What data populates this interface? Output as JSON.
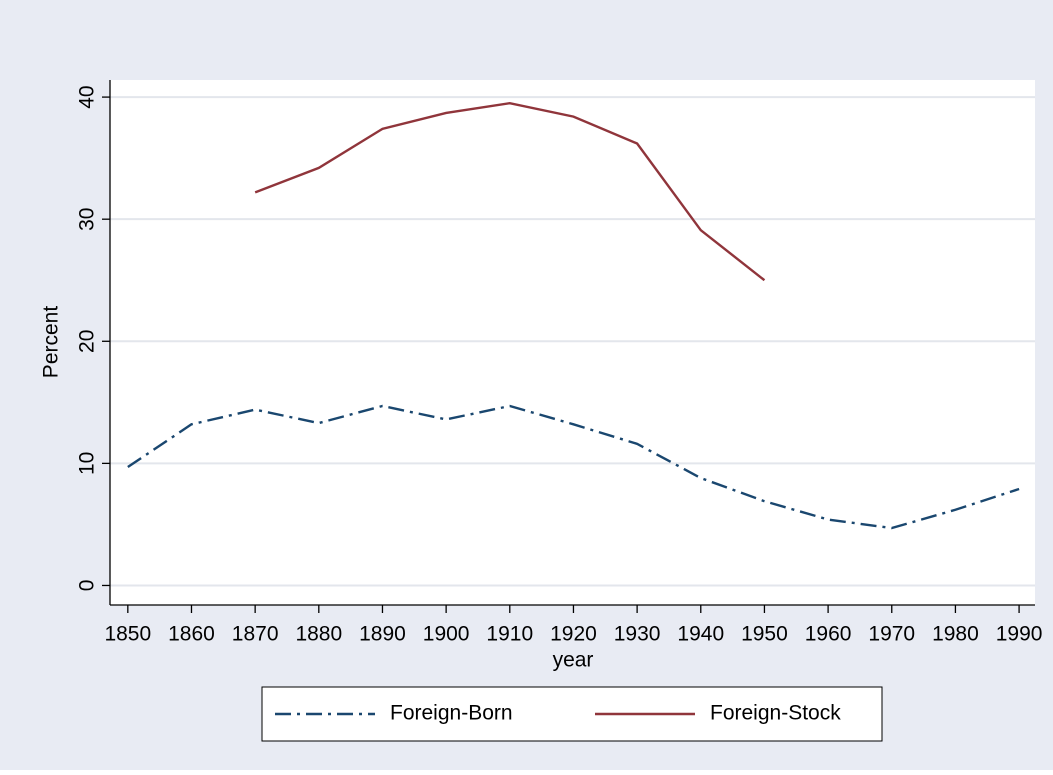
{
  "chart_data": {
    "type": "line",
    "x": [
      1850,
      1860,
      1870,
      1880,
      1890,
      1900,
      1910,
      1920,
      1930,
      1940,
      1950,
      1960,
      1970,
      1980,
      1990
    ],
    "series": [
      {
        "name": "Foreign-Born",
        "color": "#1a476f",
        "dash": "dash-dot",
        "values": [
          9.7,
          13.2,
          14.4,
          13.3,
          14.7,
          13.6,
          14.7,
          13.2,
          11.6,
          8.8,
          6.9,
          5.4,
          4.7,
          6.2,
          7.9
        ]
      },
      {
        "name": "Foreign-Stock",
        "color": "#90353b",
        "dash": "solid",
        "values": [
          null,
          null,
          32.2,
          34.2,
          37.4,
          38.7,
          39.5,
          38.4,
          36.2,
          29.1,
          25.0,
          null,
          null,
          null,
          null
        ]
      }
    ],
    "xlabel": "year",
    "ylabel": "Percent",
    "xlim": [
      1847.2,
      1992.5
    ],
    "xticks": [
      1850,
      1860,
      1870,
      1880,
      1890,
      1900,
      1910,
      1920,
      1930,
      1940,
      1950,
      1960,
      1970,
      1980,
      1990
    ],
    "ylim": [
      -1.6,
      41.4
    ],
    "yticks": [
      0,
      10,
      20,
      30,
      40
    ],
    "grid": true,
    "legend": "bottom"
  }
}
